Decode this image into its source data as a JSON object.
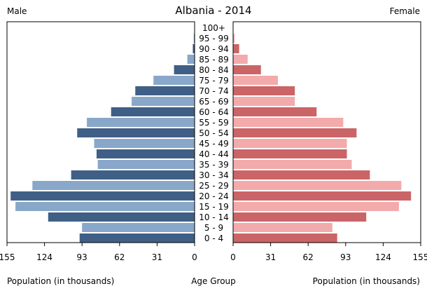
{
  "header": {
    "title": "Albania - 2014",
    "left_label": "Male",
    "right_label": "Female"
  },
  "footer": {
    "left_axis_title": "Population (in thousands)",
    "center_title": "Age Group",
    "right_axis_title": "Population (in thousands)"
  },
  "colors": {
    "male_dark": "#3f5f86",
    "male_light": "#89a7c9",
    "female_dark": "#cb6466",
    "female_light": "#f3aaab"
  },
  "chart_data": {
    "type": "bar",
    "orientation": "horizontal",
    "layout": "population-pyramid",
    "title": "Albania - 2014",
    "xlabel": "Population (in thousands)",
    "ylabel": "Age Group",
    "xlim": [
      0,
      155
    ],
    "ticks": [
      155,
      124,
      93,
      62,
      31,
      0
    ],
    "female_ticks": [
      0,
      31,
      62,
      93,
      124,
      155
    ],
    "categories": [
      "100+",
      "95 - 99",
      "90 - 94",
      "85 - 89",
      "80 - 84",
      "75 - 79",
      "70 - 74",
      "65 - 69",
      "60 - 64",
      "55 - 59",
      "50 - 54",
      "45 - 49",
      "40 - 44",
      "35 - 39",
      "30 - 34",
      "25 - 29",
      "20 - 24",
      "15 - 19",
      "10 - 14",
      "5 - 9",
      "0 - 4"
    ],
    "series": [
      {
        "name": "Male",
        "values": [
          0.2,
          0.7,
          1.5,
          6,
          17,
          34,
          49,
          52,
          69,
          89,
          97,
          83,
          81,
          80,
          102,
          134,
          152,
          148,
          121,
          93,
          95
        ]
      },
      {
        "name": "Female",
        "values": [
          0.3,
          1.2,
          5,
          12,
          23,
          37,
          51,
          51,
          69,
          91,
          102,
          94,
          94,
          98,
          113,
          139,
          147,
          137,
          110,
          82,
          86
        ]
      }
    ]
  }
}
